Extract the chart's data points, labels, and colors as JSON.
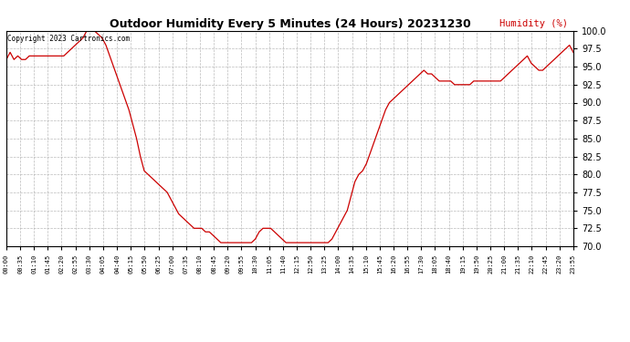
{
  "title": "Outdoor Humidity Every 5 Minutes (24 Hours) 20231230",
  "copyright": "Copyright 2023 Cartronics.com",
  "ylabel": "Humidity (%)",
  "line_color": "#cc0000",
  "bg_color": "#ffffff",
  "grid_color": "#aaaaaa",
  "ylim": [
    70.0,
    100.0
  ],
  "yticks": [
    70.0,
    72.5,
    75.0,
    77.5,
    80.0,
    82.5,
    85.0,
    87.5,
    90.0,
    92.5,
    95.0,
    97.5,
    100.0
  ],
  "xtick_labels": [
    "00:00",
    "00:35",
    "01:10",
    "01:45",
    "02:20",
    "02:55",
    "03:30",
    "04:05",
    "04:40",
    "05:15",
    "05:50",
    "06:25",
    "07:00",
    "07:35",
    "08:10",
    "08:45",
    "09:20",
    "09:55",
    "10:30",
    "11:05",
    "11:40",
    "12:15",
    "12:50",
    "13:25",
    "14:00",
    "14:35",
    "15:10",
    "15:45",
    "16:20",
    "16:55",
    "17:30",
    "18:05",
    "18:40",
    "19:15",
    "19:50",
    "20:25",
    "21:00",
    "21:35",
    "22:10",
    "22:45",
    "23:20",
    "23:55"
  ],
  "humidity_values": [
    96.0,
    97.0,
    96.0,
    96.5,
    96.0,
    96.0,
    96.5,
    96.5,
    96.5,
    96.5,
    96.5,
    96.5,
    96.5,
    96.5,
    96.5,
    96.5,
    97.0,
    97.5,
    98.0,
    98.5,
    99.0,
    100.0,
    100.0,
    100.0,
    99.5,
    99.0,
    98.0,
    96.5,
    95.0,
    93.5,
    92.0,
    90.5,
    89.0,
    87.0,
    85.0,
    82.5,
    80.5,
    80.0,
    79.5,
    79.0,
    78.5,
    78.0,
    77.5,
    76.5,
    75.5,
    74.5,
    74.0,
    73.5,
    73.0,
    72.5,
    72.5,
    72.5,
    72.0,
    72.0,
    71.5,
    71.0,
    70.5,
    70.5,
    70.5,
    70.5,
    70.5,
    70.5,
    70.5,
    70.5,
    70.5,
    71.0,
    72.0,
    72.5,
    72.5,
    72.5,
    72.0,
    71.5,
    71.0,
    70.5,
    70.5,
    70.5,
    70.5,
    70.5,
    70.5,
    70.5,
    70.5,
    70.5,
    70.5,
    70.5,
    70.5,
    71.0,
    72.0,
    73.0,
    74.0,
    75.0,
    77.0,
    79.0,
    80.0,
    80.5,
    81.5,
    83.0,
    84.5,
    86.0,
    87.5,
    89.0,
    90.0,
    90.5,
    91.0,
    91.5,
    92.0,
    92.5,
    93.0,
    93.5,
    94.0,
    94.5,
    94.0,
    94.0,
    93.5,
    93.0,
    93.0,
    93.0,
    93.0,
    92.5,
    92.5,
    92.5,
    92.5,
    92.5,
    93.0,
    93.0,
    93.0,
    93.0,
    93.0,
    93.0,
    93.0,
    93.0,
    93.5,
    94.0,
    94.5,
    95.0,
    95.5,
    96.0,
    96.5,
    95.5,
    95.0,
    94.5,
    94.5,
    95.0,
    95.5,
    96.0,
    96.5,
    97.0,
    97.5,
    98.0,
    97.0
  ]
}
